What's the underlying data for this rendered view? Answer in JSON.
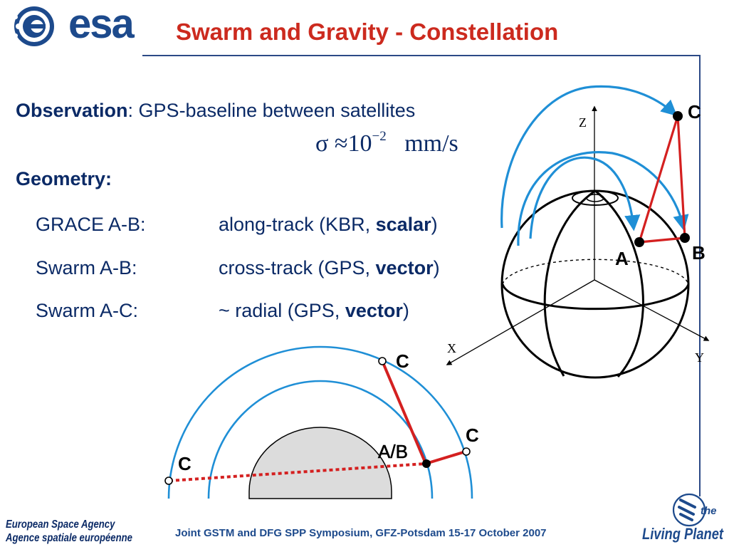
{
  "header": {
    "logo_text": "esa",
    "title": "Swarm and Gravity - Constellation"
  },
  "observation": {
    "label": "Observation",
    "text": ": GPS-baseline between satellites",
    "formula": {
      "sigma": "σ",
      "approx": "≈",
      "base": "10",
      "exponent": "−2",
      "unit": "mm/s"
    }
  },
  "geometry": {
    "heading": "Geometry:",
    "rows": [
      {
        "label": "GRACE A-B:",
        "prefix": "along-track (KBR, ",
        "bold": "scalar",
        "suffix": ")"
      },
      {
        "label": "Swarm A-B:",
        "prefix": "cross-track (GPS, ",
        "bold": "vector",
        "suffix": ")"
      },
      {
        "label": "Swarm A-C:",
        "prefix": "~ radial (GPS, ",
        "bold": "vector",
        "suffix": ")"
      }
    ]
  },
  "globe_diagram": {
    "axes": {
      "z": "Z",
      "x": "X",
      "y": "Y"
    },
    "points": {
      "a": "A",
      "b": "B",
      "c": "C"
    }
  },
  "cross_section": {
    "labels": {
      "c_top": "C",
      "c_right": "C",
      "ab": "A/B",
      "c_left": "C"
    }
  },
  "footer": {
    "agency_en": "European Space Agency",
    "agency_fr": "Agence spatiale européenne",
    "event": "Joint GSTM and DFG SPP Symposium, GFZ-Potsdam 15-17 October 2007",
    "brand_small": "the",
    "brand": "Living Planet"
  },
  "colors": {
    "title_red": "#cc2a1e",
    "text_navy": "#0b2a66",
    "orbit_blue": "#1f8fd6",
    "baseline_red": "#d42020",
    "earth_grey": "#dcdcdc"
  }
}
